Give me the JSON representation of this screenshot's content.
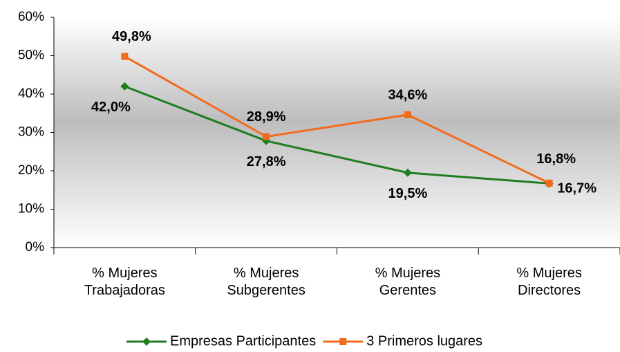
{
  "chart_data": {
    "type": "line",
    "categories": [
      "% Mujeres Trabajadoras",
      "% Mujeres Subgerentes",
      "% Mujeres Gerentes",
      "% Mujeres Directores"
    ],
    "series": [
      {
        "name": "Empresas Participantes",
        "color": "#1e7d1e",
        "marker": "diamond",
        "values": [
          42.0,
          27.8,
          19.5,
          16.7
        ],
        "value_labels": [
          "42,0%",
          "27,8%",
          "19,5%",
          "16,7%"
        ]
      },
      {
        "name": "3 Primeros lugares",
        "color": "#f26b1d",
        "marker": "square",
        "values": [
          49.8,
          28.9,
          34.6,
          16.8
        ],
        "value_labels": [
          "49,8%",
          "28,9%",
          "34,6%",
          "16,8%"
        ]
      }
    ],
    "ylim": [
      0,
      60
    ],
    "yticks": [
      {
        "value": 0,
        "label": "0%"
      },
      {
        "value": 10,
        "label": "10%"
      },
      {
        "value": 20,
        "label": "20%"
      },
      {
        "value": 30,
        "label": "30%"
      },
      {
        "value": 40,
        "label": "40%"
      },
      {
        "value": 50,
        "label": "50%"
      },
      {
        "value": 60,
        "label": "60%"
      }
    ],
    "legend": "bottom"
  }
}
